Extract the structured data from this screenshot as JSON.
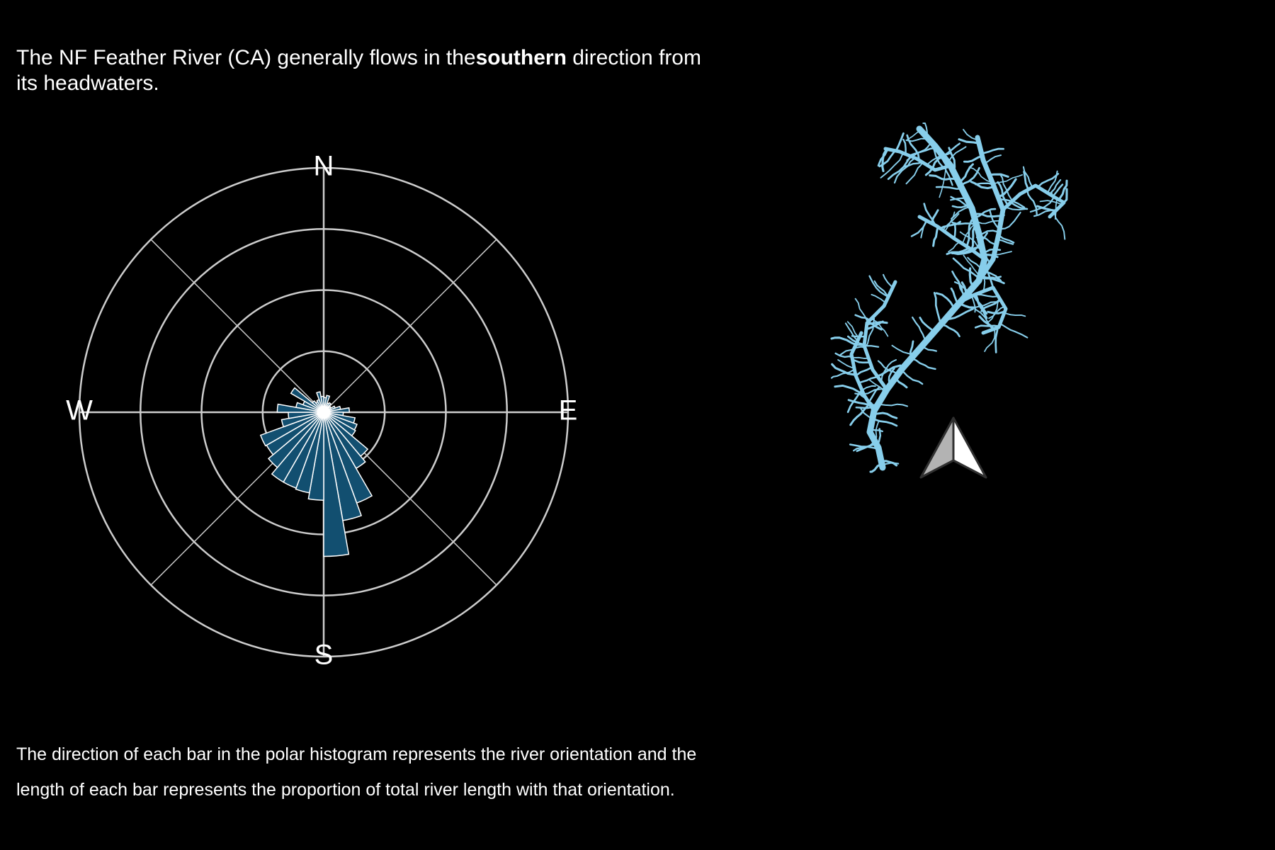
{
  "headline": {
    "prefix": "The NF Feather River (CA) generally flows in the",
    "emphasis": "southern",
    "suffix": "direction from its headwaters."
  },
  "caption": {
    "line1": "The direction of each bar in the polar histogram represents the river orientation and the",
    "line2": "length of each bar represents the proportion of total river length with that orientation."
  },
  "colors": {
    "background": "#000000",
    "bar_fill": "#124f70",
    "bar_stroke": "#ffffff",
    "grid": "#cccccc",
    "river": "#87ceeb",
    "text": "#ffffff"
  },
  "chart_data": {
    "type": "polar-histogram",
    "direction_labels": [
      "N",
      "E",
      "S",
      "W"
    ],
    "bin_width_deg": 10,
    "radial_gridlines": [
      0.05,
      0.1,
      0.15,
      0.2
    ],
    "spokes_deg": [
      0,
      45,
      90,
      135,
      180,
      225,
      270,
      315
    ],
    "bins": [
      {
        "center": 5,
        "value": 0.012
      },
      {
        "center": 15,
        "value": 0.014
      },
      {
        "center": 25,
        "value": 0.008
      },
      {
        "center": 35,
        "value": 0.009
      },
      {
        "center": 45,
        "value": 0.006
      },
      {
        "center": 55,
        "value": 0.007
      },
      {
        "center": 65,
        "value": 0.01
      },
      {
        "center": 75,
        "value": 0.014
      },
      {
        "center": 85,
        "value": 0.021
      },
      {
        "center": 95,
        "value": 0.016
      },
      {
        "center": 105,
        "value": 0.026
      },
      {
        "center": 115,
        "value": 0.029
      },
      {
        "center": 125,
        "value": 0.03
      },
      {
        "center": 135,
        "value": 0.047
      },
      {
        "center": 145,
        "value": 0.053
      },
      {
        "center": 155,
        "value": 0.079
      },
      {
        "center": 165,
        "value": 0.09
      },
      {
        "center": 175,
        "value": 0.118
      },
      {
        "center": 185,
        "value": 0.072
      },
      {
        "center": 195,
        "value": 0.067
      },
      {
        "center": 205,
        "value": 0.066
      },
      {
        "center": 215,
        "value": 0.066
      },
      {
        "center": 225,
        "value": 0.059
      },
      {
        "center": 235,
        "value": 0.054
      },
      {
        "center": 245,
        "value": 0.055
      },
      {
        "center": 255,
        "value": 0.035
      },
      {
        "center": 265,
        "value": 0.029
      },
      {
        "center": 275,
        "value": 0.038
      },
      {
        "center": 285,
        "value": 0.023
      },
      {
        "center": 295,
        "value": 0.018
      },
      {
        "center": 305,
        "value": 0.031
      },
      {
        "center": 315,
        "value": 0.012
      },
      {
        "center": 325,
        "value": 0.01
      },
      {
        "center": 335,
        "value": 0.011
      },
      {
        "center": 345,
        "value": 0.017
      },
      {
        "center": 355,
        "value": 0.013
      }
    ]
  },
  "map": {
    "river_name": "NF Feather River (CA)",
    "north_arrow_icon": "north-arrow-icon"
  }
}
